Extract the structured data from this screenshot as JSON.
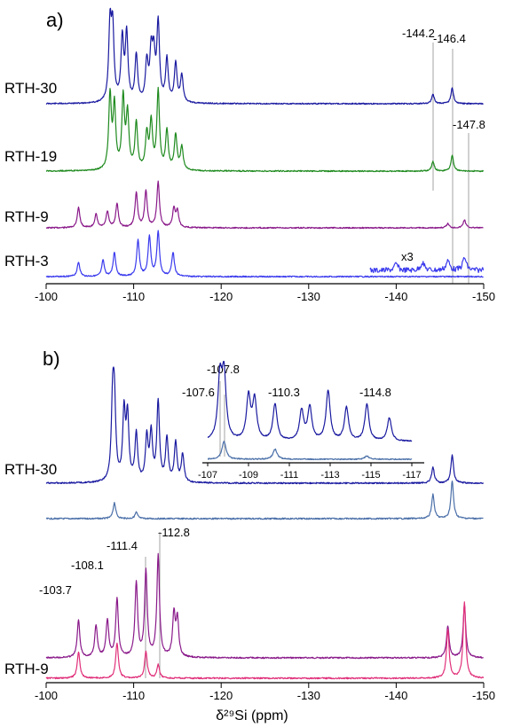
{
  "chart_data": [
    {
      "type": "line",
      "panel_label": "a)",
      "xlim": [
        -100,
        -150
      ],
      "x_ticks": [
        -100,
        -110,
        -120,
        -130,
        -140,
        -150
      ],
      "x_tick_labels": [
        "-100",
        "-110",
        "-120",
        "-130",
        "-140",
        "-150"
      ],
      "grid": false,
      "series": [
        {
          "name": "RTH-30",
          "color": "#1a1aa0",
          "peaks": [
            [
              -107.3,
              0.95
            ],
            [
              -107.6,
              0.9
            ],
            [
              -108.7,
              0.8
            ],
            [
              -109.2,
              0.86
            ],
            [
              -110.3,
              0.6
            ],
            [
              -111.5,
              0.5
            ],
            [
              -112.0,
              0.6
            ],
            [
              -112.3,
              0.55
            ],
            [
              -112.8,
              1.0
            ],
            [
              -113.8,
              0.55
            ],
            [
              -114.8,
              0.5
            ],
            [
              -115.5,
              0.35
            ],
            [
              -144.2,
              0.12
            ],
            [
              -146.4,
              0.2
            ]
          ]
        },
        {
          "name": "RTH-19",
          "color": "#1e8a1e",
          "peaks": [
            [
              -107.3,
              0.95
            ],
            [
              -107.8,
              0.8
            ],
            [
              -108.8,
              0.9
            ],
            [
              -109.3,
              0.7
            ],
            [
              -110.3,
              0.6
            ],
            [
              -111.5,
              0.45
            ],
            [
              -112.0,
              0.6
            ],
            [
              -112.8,
              1.0
            ],
            [
              -113.8,
              0.5
            ],
            [
              -114.8,
              0.45
            ],
            [
              -115.5,
              0.3
            ],
            [
              -144.2,
              0.12
            ],
            [
              -146.4,
              0.2
            ]
          ]
        },
        {
          "name": "RTH-9",
          "color": "#8a1a8a",
          "peaks": [
            [
              -103.7,
              0.38
            ],
            [
              -105.7,
              0.25
            ],
            [
              -107.0,
              0.3
            ],
            [
              -108.1,
              0.45
            ],
            [
              -110.3,
              0.65
            ],
            [
              -111.4,
              0.68
            ],
            [
              -112.8,
              0.85
            ],
            [
              -114.6,
              0.35
            ],
            [
              -115.0,
              0.3
            ],
            [
              -145.9,
              0.08
            ],
            [
              -147.8,
              0.15
            ]
          ]
        },
        {
          "name": "RTH-3",
          "color": "#3a3aee",
          "peaks": [
            [
              -103.7,
              0.18
            ],
            [
              -106.5,
              0.2
            ],
            [
              -107.8,
              0.3
            ],
            [
              -110.5,
              0.45
            ],
            [
              -111.8,
              0.5
            ],
            [
              -112.8,
              0.55
            ],
            [
              -114.5,
              0.3
            ]
          ],
          "inset_label": "x3"
        }
      ],
      "annotations": [
        "-144.2",
        "-146.4",
        "-147.8"
      ]
    },
    {
      "type": "line",
      "panel_label": "b)",
      "xlabel": "δ²⁹Si (ppm)",
      "xlim": [
        -100,
        -150
      ],
      "x_ticks": [
        -100,
        -110,
        -120,
        -130,
        -140,
        -150
      ],
      "x_tick_labels": [
        "-100",
        "-110",
        "-120",
        "-130",
        "-140",
        "-150"
      ],
      "grid": false,
      "series": [
        {
          "name": "RTH-30",
          "color": "#1a1aa0",
          "peaks": [
            [
              -107.6,
              0.95
            ],
            [
              -107.8,
              0.9
            ],
            [
              -108.9,
              0.85
            ],
            [
              -109.3,
              0.8
            ],
            [
              -110.3,
              0.6
            ],
            [
              -111.5,
              0.55
            ],
            [
              -112.0,
              0.6
            ],
            [
              -112.8,
              1.0
            ],
            [
              -113.8,
              0.55
            ],
            [
              -114.8,
              0.5
            ],
            [
              -115.6,
              0.35
            ],
            [
              -144.2,
              0.2
            ],
            [
              -146.4,
              0.35
            ]
          ]
        },
        {
          "color": "#4a6fa8",
          "peaks": [
            [
              -107.8,
              0.3
            ],
            [
              -110.3,
              0.12
            ],
            [
              -144.2,
              0.45
            ],
            [
              -146.4,
              0.7
            ]
          ]
        },
        {
          "name": "RTH-9",
          "color": "#8a1a8a",
          "peaks": [
            [
              -103.7,
              0.35
            ],
            [
              -105.7,
              0.3
            ],
            [
              -107.0,
              0.35
            ],
            [
              -108.1,
              0.55
            ],
            [
              -110.3,
              0.7
            ],
            [
              -111.4,
              0.8
            ],
            [
              -112.8,
              0.95
            ],
            [
              -114.6,
              0.4
            ],
            [
              -115.0,
              0.35
            ],
            [
              -145.9,
              0.3
            ],
            [
              -147.8,
              0.5
            ]
          ]
        },
        {
          "color": "#e0307a",
          "peaks": [
            [
              -103.7,
              0.3
            ],
            [
              -108.1,
              0.4
            ],
            [
              -111.4,
              0.3
            ],
            [
              -112.8,
              0.15
            ],
            [
              -145.9,
              0.55
            ],
            [
              -147.8,
              0.85
            ]
          ]
        }
      ],
      "annotations": [
        "-103.7",
        "-108.1",
        "-111.4",
        "-112.8"
      ],
      "inset": {
        "xlim": [
          -107,
          -117
        ],
        "x_ticks": [
          -107,
          -109,
          -111,
          -113,
          -115,
          -117
        ],
        "x_tick_labels": [
          "-107",
          "-109",
          "-111",
          "-113",
          "-115",
          "-117"
        ],
        "annotations": [
          "-107.8",
          "-107.6",
          "-110.3",
          "-114.8"
        ]
      }
    }
  ]
}
